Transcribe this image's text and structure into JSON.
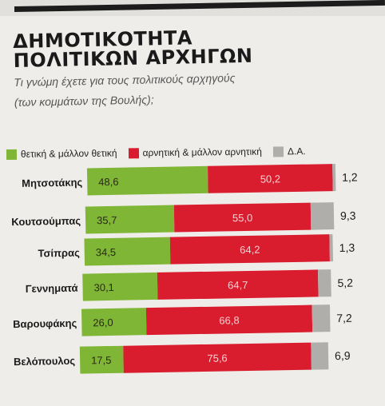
{
  "header": {
    "title_line1": "ΔΗΜΟΤΙΚΟΤΗΤΑ",
    "title_line2": "ΠΟΛΙΤΙΚΩΝ ΑΡΧΗΓΩΝ",
    "question_line1": "Τι γνώμη έχετε για τους πολιτικούς αρχηγούς",
    "question_line2": "(των κομμάτων της Βουλής);"
  },
  "legend": {
    "positive": "θετική & μάλλον θετική",
    "negative": "αρνητική & μάλλον αρνητική",
    "dk": "Δ.Α."
  },
  "colors": {
    "positive": "#7fb636",
    "negative": "#d91d2e",
    "dk": "#b0aeab"
  },
  "chart_data": {
    "type": "bar",
    "stacked": true,
    "orientation": "horizontal",
    "categories": [
      "Μητσοτάκης",
      "Κουτσούμπας",
      "Τσίπρας",
      "Γεννηματά",
      "Βαρουφάκης",
      "Βελόπουλος"
    ],
    "series": [
      {
        "name": "θετική & μάλλον θετική",
        "values": [
          48.6,
          35.7,
          34.5,
          30.1,
          26.0,
          17.5
        ],
        "labels": [
          "48,6",
          "35,7",
          "34,5",
          "30,1",
          "26,0",
          "17,5"
        ]
      },
      {
        "name": "αρνητική & μάλλον αρνητική",
        "values": [
          50.2,
          55.0,
          64.2,
          64.7,
          66.8,
          75.6
        ],
        "labels": [
          "50,2",
          "55,0",
          "64,2",
          "64,7",
          "66,8",
          "75,6"
        ]
      },
      {
        "name": "Δ.Α.",
        "values": [
          1.2,
          9.3,
          1.3,
          5.2,
          7.2,
          6.9
        ],
        "labels": [
          "1,2",
          "9,3",
          "1,3",
          "5,2",
          "7,2",
          "6,9"
        ]
      }
    ],
    "legend_position": "top",
    "grid": false
  }
}
